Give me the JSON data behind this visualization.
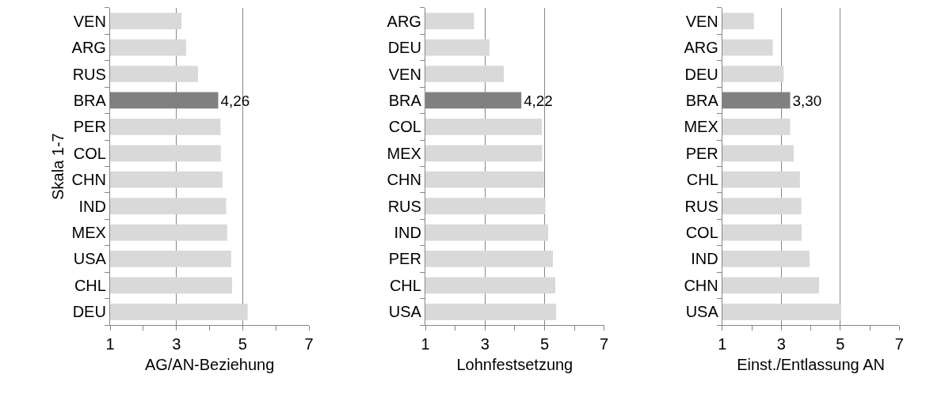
{
  "chart_data": [
    {
      "type": "bar",
      "orientation": "horizontal",
      "ylabel": "Skala 1-7",
      "xlabel": "AG/AN-Beziehung",
      "categories": [
        "VEN",
        "ARG",
        "RUS",
        "BRA",
        "PER",
        "COL",
        "CHN",
        "IND",
        "MEX",
        "USA",
        "CHL",
        "DEU"
      ],
      "values": [
        3.15,
        3.29,
        3.65,
        4.26,
        4.33,
        4.34,
        4.39,
        4.5,
        4.53,
        4.65,
        4.68,
        5.15
      ],
      "colors": [
        "#d9d9d9",
        "#d9d9d9",
        "#d9d9d9",
        "#808080",
        "#d9d9d9",
        "#d9d9d9",
        "#d9d9d9",
        "#d9d9d9",
        "#d9d9d9",
        "#d9d9d9",
        "#d9d9d9",
        "#d9d9d9"
      ],
      "value_labels": [
        null,
        null,
        null,
        "4,26",
        null,
        null,
        null,
        null,
        null,
        null,
        null,
        null
      ],
      "xlim": [
        1,
        7
      ],
      "xticks": [
        1,
        3,
        5,
        7
      ],
      "grid": "x"
    },
    {
      "type": "bar",
      "orientation": "horizontal",
      "xlabel": "Lohnfestsetzung",
      "categories": [
        "ARG",
        "DEU",
        "VEN",
        "BRA",
        "COL",
        "MEX",
        "CHN",
        "RUS",
        "IND",
        "PER",
        "CHL",
        "USA"
      ],
      "values": [
        2.63,
        3.15,
        3.63,
        4.22,
        4.91,
        4.92,
        4.98,
        5.03,
        5.12,
        5.28,
        5.36,
        5.39
      ],
      "colors": [
        "#d9d9d9",
        "#d9d9d9",
        "#d9d9d9",
        "#808080",
        "#d9d9d9",
        "#d9d9d9",
        "#d9d9d9",
        "#d9d9d9",
        "#d9d9d9",
        "#d9d9d9",
        "#d9d9d9",
        "#d9d9d9"
      ],
      "value_labels": [
        null,
        null,
        null,
        "4,22",
        null,
        null,
        null,
        null,
        null,
        null,
        null,
        null
      ],
      "xlim": [
        1,
        7
      ],
      "xticks": [
        1,
        3,
        5,
        7
      ],
      "grid": "x"
    },
    {
      "type": "bar",
      "orientation": "horizontal",
      "xlabel": "Einst./Entlassung AN",
      "categories": [
        "VEN",
        "ARG",
        "DEU",
        "BRA",
        "MEX",
        "PER",
        "CHL",
        "RUS",
        "COL",
        "IND",
        "CHN",
        "USA"
      ],
      "values": [
        2.07,
        2.71,
        3.08,
        3.3,
        3.3,
        3.42,
        3.63,
        3.68,
        3.69,
        3.96,
        4.28,
        5.03
      ],
      "colors": [
        "#d9d9d9",
        "#d9d9d9",
        "#d9d9d9",
        "#808080",
        "#d9d9d9",
        "#d9d9d9",
        "#d9d9d9",
        "#d9d9d9",
        "#d9d9d9",
        "#d9d9d9",
        "#d9d9d9",
        "#d9d9d9"
      ],
      "value_labels": [
        null,
        null,
        null,
        "3,30",
        null,
        null,
        null,
        null,
        null,
        null,
        null,
        null
      ],
      "xlim": [
        1,
        7
      ],
      "xticks": [
        1,
        3,
        5,
        7
      ],
      "grid": "x"
    }
  ]
}
